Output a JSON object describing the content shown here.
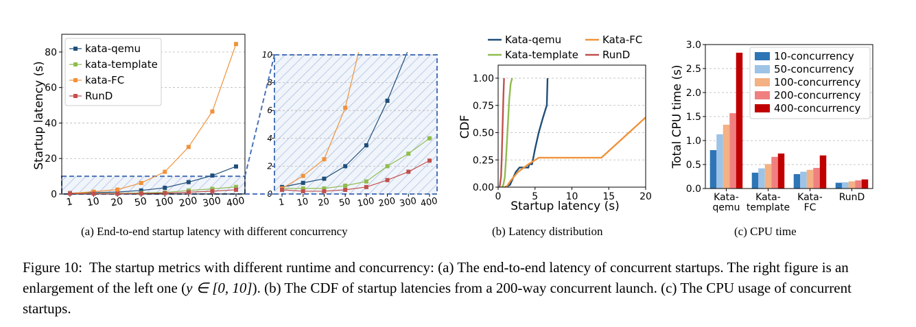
{
  "chart_data": [
    {
      "type": "line",
      "panel": "a-left",
      "categories": [
        "1",
        "10",
        "20",
        "50",
        "100",
        "200",
        "300",
        "400"
      ],
      "series": [
        {
          "name": "kata-qemu",
          "values": [
            0.5,
            0.8,
            1.1,
            2.0,
            3.5,
            6.7,
            10.4,
            15.5
          ],
          "color": "#1f4e79",
          "marker": "square"
        },
        {
          "name": "kata-template",
          "values": [
            0.4,
            0.4,
            0.4,
            0.6,
            0.9,
            2.0,
            2.9,
            4.0
          ],
          "color": "#8fbc4f",
          "marker": "square"
        },
        {
          "name": "kata-FC",
          "values": [
            0.4,
            1.3,
            2.5,
            6.2,
            12.5,
            26.5,
            46.5,
            84.5
          ],
          "color": "#f0923a",
          "marker": "square"
        },
        {
          "name": "RunD",
          "values": [
            0.3,
            0.2,
            0.2,
            0.3,
            0.5,
            1.0,
            1.6,
            2.4
          ],
          "color": "#c0504d",
          "marker": "square"
        }
      ],
      "xlabel": "",
      "ylabel": "Startup latency (s)",
      "ylim": [
        0,
        90
      ],
      "yticks": [
        "0",
        "20",
        "40",
        "60",
        "80"
      ],
      "grid": true,
      "legend": "top-left",
      "highlight_region": [
        0,
        10
      ]
    },
    {
      "type": "line",
      "panel": "a-right",
      "categories": [
        "1",
        "10",
        "20",
        "50",
        "100",
        "200",
        "300",
        "400"
      ],
      "series_ref": "same as a-left, zoomed",
      "ylim": [
        0,
        10
      ],
      "yticks": [
        "0",
        "2",
        "4",
        "6",
        "8",
        "10"
      ],
      "grid": true
    },
    {
      "type": "line",
      "panel": "b",
      "series": [
        {
          "name": "Kata-qemu",
          "color": "#1f4e79",
          "points": [
            [
              0.9,
              0
            ],
            [
              1.6,
              0.02
            ],
            [
              2.4,
              0.14
            ],
            [
              2.9,
              0.18
            ],
            [
              4.1,
              0.18
            ],
            [
              4.2,
              0.21
            ],
            [
              4.6,
              0.21
            ],
            [
              5.0,
              0.35
            ],
            [
              5.5,
              0.5
            ],
            [
              6.0,
              0.62
            ],
            [
              6.5,
              0.73
            ],
            [
              6.6,
              0.75
            ],
            [
              6.7,
              1.0
            ]
          ]
        },
        {
          "name": "Kata-FC",
          "color": "#f0923a",
          "points": [
            [
              0.5,
              0
            ],
            [
              1.1,
              0
            ],
            [
              1.7,
              0.06
            ],
            [
              2.7,
              0.14
            ],
            [
              4.1,
              0.21
            ],
            [
              5.5,
              0.27
            ],
            [
              14.0,
              0.27
            ],
            [
              20,
              0.64
            ]
          ]
        },
        {
          "name": "Kata-template",
          "color": "#8fbc4f",
          "points": [
            [
              0.5,
              0
            ],
            [
              0.7,
              0.02
            ],
            [
              0.9,
              0.09
            ],
            [
              1.0,
              0.19
            ],
            [
              1.1,
              0.3
            ],
            [
              1.3,
              0.55
            ],
            [
              1.5,
              0.8
            ],
            [
              1.7,
              0.95
            ],
            [
              1.9,
              1.0
            ]
          ]
        },
        {
          "name": "RunD",
          "color": "#c0504d",
          "points": [
            [
              0.2,
              0
            ],
            [
              0.4,
              0.1
            ],
            [
              0.5,
              0.3
            ],
            [
              0.6,
              0.55
            ],
            [
              0.7,
              0.8
            ],
            [
              0.8,
              1.0
            ]
          ]
        }
      ],
      "xlabel": "Startup latency (s)",
      "ylabel": "CDF",
      "xlim": [
        0,
        20
      ],
      "ylim": [
        0,
        1.0
      ],
      "xticks": [
        "0",
        "5",
        "10",
        "15",
        "20"
      ],
      "yticks": [
        "0.00",
        "0.25",
        "0.50",
        "0.75",
        "1.00"
      ],
      "grid": true,
      "legend": "top (outside)"
    },
    {
      "type": "bar",
      "panel": "c",
      "categories": [
        "Kata-\nqemu",
        "Kata-\ntemplate",
        "Kata-\nFC",
        "RunD"
      ],
      "series": [
        {
          "name": "10-concurrency",
          "values": [
            0.8,
            0.33,
            0.3,
            0.12
          ],
          "color": "#2e75b6"
        },
        {
          "name": "50-concurrency",
          "values": [
            1.13,
            0.42,
            0.35,
            0.13
          ],
          "color": "#9dc3e6"
        },
        {
          "name": "100-concurrency",
          "values": [
            1.33,
            0.51,
            0.39,
            0.15
          ],
          "color": "#f4b183"
        },
        {
          "name": "200-concurrency",
          "values": [
            1.57,
            0.66,
            0.43,
            0.17
          ],
          "color": "#f08080"
        },
        {
          "name": "400-concurrency",
          "values": [
            2.83,
            0.73,
            0.69,
            0.19
          ],
          "color": "#c00000"
        }
      ],
      "ylabel": "Total CPU time (s)",
      "ylim": [
        0,
        3.0
      ],
      "yticks": [
        "0.0",
        "0.5",
        "1.0",
        "1.5",
        "2.0",
        "2.5",
        "3.0"
      ],
      "grid": true,
      "legend": "top-right"
    }
  ],
  "subcaptions": {
    "a": "(a)  End-to-end startup latency with different concurrency",
    "b": "(b)  Latency distribution",
    "c": "(c)  CPU time"
  },
  "caption": {
    "lead": "Figure 10:  The startup metrics with different runtime and concurrency: (a) The end-to-end latency of concurrent startups. The right figure is an enlargement of the left one (",
    "math": "y ∈ [0, 10]",
    "tail": "). (b) The CDF of startup latencies from a 200-way concurrent launch. (c) The CPU usage of concurrent startups."
  }
}
